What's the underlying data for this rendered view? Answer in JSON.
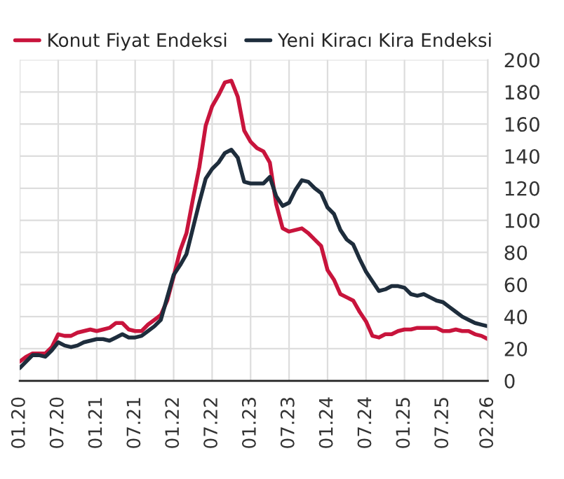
{
  "chart_data": {
    "type": "line",
    "x": [
      "2020-01",
      "2020-02",
      "2020-03",
      "2020-04",
      "2020-05",
      "2020-06",
      "2020-07",
      "2020-08",
      "2020-09",
      "2020-10",
      "2020-11",
      "2020-12",
      "2021-01",
      "2021-02",
      "2021-03",
      "2021-04",
      "2021-05",
      "2021-06",
      "2021-07",
      "2021-08",
      "2021-09",
      "2021-10",
      "2021-11",
      "2021-12",
      "2022-01",
      "2022-02",
      "2022-03",
      "2022-04",
      "2022-05",
      "2022-06",
      "2022-07",
      "2022-08",
      "2022-09",
      "2022-10",
      "2022-11",
      "2022-12",
      "2023-01",
      "2023-02",
      "2023-03",
      "2023-04",
      "2023-05",
      "2023-06",
      "2023-07",
      "2023-08",
      "2023-09",
      "2023-10",
      "2023-11",
      "2023-12",
      "2024-01",
      "2024-02",
      "2024-03",
      "2024-04",
      "2024-05",
      "2024-06",
      "2024-07",
      "2024-08",
      "2024-09",
      "2024-10",
      "2024-11",
      "2024-12",
      "2025-01",
      "2025-02",
      "2025-03",
      "2025-04",
      "2025-05",
      "2025-06",
      "2025-07",
      "2025-08",
      "2025-09",
      "2025-10",
      "2025-11",
      "2025-12",
      "2026-01",
      "2026-02"
    ],
    "series": [
      {
        "name": "Konut Fiyat Endeksi",
        "color": "#c8143c",
        "values": [
          12,
          15,
          17,
          17,
          17,
          21,
          29,
          28,
          28,
          30,
          31,
          32,
          31,
          32,
          33,
          36,
          36,
          32,
          31,
          31,
          35,
          38,
          41,
          50,
          65,
          81,
          92,
          113,
          133,
          159,
          171,
          178,
          186,
          187,
          177,
          156,
          149,
          145,
          143,
          136,
          110,
          95,
          93,
          94,
          95,
          92,
          88,
          84,
          69,
          63,
          54,
          52,
          50,
          43,
          37,
          28,
          27,
          29,
          29,
          31,
          32,
          32,
          33,
          33,
          33,
          33,
          31,
          31,
          32,
          31,
          31,
          29,
          28,
          26
        ]
      },
      {
        "name": "Yeni Kiracı Kira Endeksi",
        "color": "#1e2d3c",
        "values": [
          8,
          12,
          16,
          16,
          15,
          19,
          24,
          22,
          21,
          22,
          24,
          25,
          26,
          26,
          25,
          27,
          29,
          27,
          27,
          28,
          31,
          34,
          38,
          52,
          66,
          72,
          79,
          95,
          111,
          126,
          132,
          136,
          142,
          144,
          139,
          124,
          123,
          123,
          123,
          127,
          115,
          109,
          111,
          119,
          125,
          124,
          120,
          117,
          108,
          104,
          94,
          88,
          85,
          76,
          68,
          62,
          56,
          57,
          59,
          59,
          58,
          54,
          53,
          54,
          52,
          50,
          49,
          46,
          43,
          40,
          38,
          36,
          35,
          34
        ]
      }
    ],
    "xlim": [
      "2020-01",
      "2026-02"
    ],
    "xticks": [
      {
        "value": "2020-01",
        "label": "01.20"
      },
      {
        "value": "2020-07",
        "label": "07.20"
      },
      {
        "value": "2021-01",
        "label": "01.21"
      },
      {
        "value": "2021-07",
        "label": "07.21"
      },
      {
        "value": "2022-01",
        "label": "01.22"
      },
      {
        "value": "2022-07",
        "label": "07.22"
      },
      {
        "value": "2023-01",
        "label": "01.23"
      },
      {
        "value": "2023-07",
        "label": "07.23"
      },
      {
        "value": "2024-01",
        "label": "01.24"
      },
      {
        "value": "2024-07",
        "label": "07.24"
      },
      {
        "value": "2025-01",
        "label": "01.25"
      },
      {
        "value": "2025-07",
        "label": "07.25"
      },
      {
        "value": "2026-02",
        "label": "02.26"
      }
    ],
    "ylim": [
      0,
      200
    ],
    "yticks": [
      0,
      20,
      40,
      60,
      80,
      100,
      120,
      140,
      160,
      180,
      200
    ],
    "grid": true,
    "legend": "top",
    "line_style": "solid",
    "marker": "none"
  }
}
